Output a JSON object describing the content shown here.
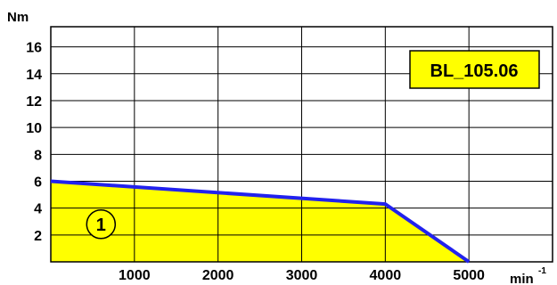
{
  "chart_data": {
    "type": "area",
    "title": "BL_105.06",
    "ylabel": "Nm",
    "xlabel": "min",
    "xlabel_superscript": "-1",
    "xlim": [
      0,
      6000
    ],
    "ylim": [
      0,
      17.5
    ],
    "x_ticks": [
      1000,
      2000,
      3000,
      4000,
      5000
    ],
    "x_tick_labels": [
      "1000",
      "2000",
      "3000",
      "4000",
      "5000"
    ],
    "y_ticks": [
      2,
      4,
      6,
      8,
      10,
      12,
      14,
      16
    ],
    "y_tick_labels": [
      "2",
      "4",
      "6",
      "8",
      "10",
      "12",
      "14",
      "16"
    ],
    "grid": true,
    "series": [
      {
        "x": [
          0,
          4000,
          5000
        ],
        "y": [
          6.0,
          4.3,
          0.0
        ]
      }
    ],
    "annotations": [
      {
        "text": "1",
        "x": 600,
        "y": 2.8
      }
    ],
    "colors": {
      "fill": "#ffff00",
      "line": "#2222ee",
      "grid": "#000000",
      "label_box": "#ffff00"
    }
  }
}
